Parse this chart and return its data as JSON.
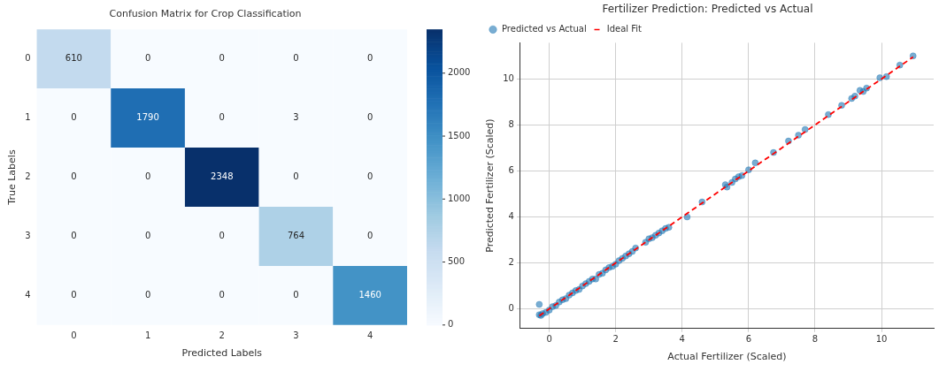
{
  "chart_data": [
    {
      "type": "heatmap",
      "title": "Confusion Matrix for Crop Classification",
      "xlabel": "Predicted Labels",
      "ylabel": "True Labels",
      "categories": [
        "0",
        "1",
        "2",
        "3",
        "4"
      ],
      "y_categories": [
        "0",
        "1",
        "2",
        "3",
        "4"
      ],
      "cells": [
        [
          610,
          0,
          0,
          0,
          0
        ],
        [
          0,
          1790,
          0,
          3,
          0
        ],
        [
          0,
          0,
          2348,
          0,
          0
        ],
        [
          0,
          0,
          0,
          764,
          0
        ],
        [
          0,
          0,
          0,
          0,
          1460
        ]
      ],
      "clim": [
        0,
        2348
      ],
      "cticks": [
        0,
        500,
        1000,
        1500,
        2000
      ],
      "data_labels": true
    },
    {
      "type": "scatter",
      "title": "Fertilizer Prediction: Predicted vs Actual",
      "xlabel": "Actual Fertilizer (Scaled)",
      "ylabel": "Predicted Fertilizer (Scaled)",
      "xlim": [
        -0.87,
        11.57
      ],
      "ylim": [
        -0.85,
        11.57
      ],
      "xticks": [
        0,
        2,
        4,
        6,
        8,
        10
      ],
      "yticks": [
        0,
        2,
        4,
        6,
        8,
        10
      ],
      "grid": true,
      "legend": "top left",
      "series": [
        {
          "name": "Predicted vs Actual",
          "type": "scatter",
          "color": "#1f77b4",
          "marker": "circle",
          "x": [
            -0.3,
            -0.3,
            -0.25,
            -0.2,
            -0.1,
            0,
            0.1,
            0.2,
            0.3,
            0.4,
            0.5,
            0.6,
            0.7,
            0.8,
            0.9,
            1.0,
            1.1,
            1.2,
            1.3,
            1.4,
            1.5,
            1.6,
            1.7,
            1.8,
            1.9,
            2.0,
            2.1,
            2.2,
            2.3,
            2.4,
            2.5,
            2.6,
            2.9,
            3.0,
            3.1,
            3.2,
            3.3,
            3.4,
            3.5,
            3.6,
            4.15,
            4.6,
            5.3,
            5.35,
            5.5,
            5.6,
            5.7,
            5.8,
            6.0,
            6.2,
            6.75,
            7.2,
            7.5,
            7.7,
            8.4,
            8.8,
            9.1,
            9.2,
            9.35,
            9.45,
            9.55,
            9.95,
            10.15,
            10.55,
            10.95
          ],
          "values": [
            0.2,
            -0.25,
            -0.28,
            -0.2,
            -0.15,
            -0.05,
            0.1,
            0.15,
            0.3,
            0.4,
            0.45,
            0.6,
            0.7,
            0.8,
            0.85,
            1.0,
            1.1,
            1.2,
            1.3,
            1.3,
            1.5,
            1.55,
            1.7,
            1.8,
            1.85,
            1.95,
            2.1,
            2.2,
            2.3,
            2.4,
            2.5,
            2.65,
            2.9,
            3.05,
            3.1,
            3.2,
            3.3,
            3.4,
            3.5,
            3.55,
            4.0,
            4.65,
            5.4,
            5.3,
            5.5,
            5.65,
            5.75,
            5.8,
            6.05,
            6.35,
            6.8,
            7.3,
            7.55,
            7.8,
            8.45,
            8.85,
            9.15,
            9.25,
            9.5,
            9.45,
            9.6,
            10.05,
            10.1,
            10.6,
            11.0
          ]
        },
        {
          "name": "Ideal Fit",
          "type": "line",
          "color": "#ff0000",
          "marker": "none",
          "line_style": "dashed",
          "x": [
            -0.3,
            10.95
          ],
          "values": [
            -0.3,
            10.95
          ]
        }
      ]
    }
  ]
}
